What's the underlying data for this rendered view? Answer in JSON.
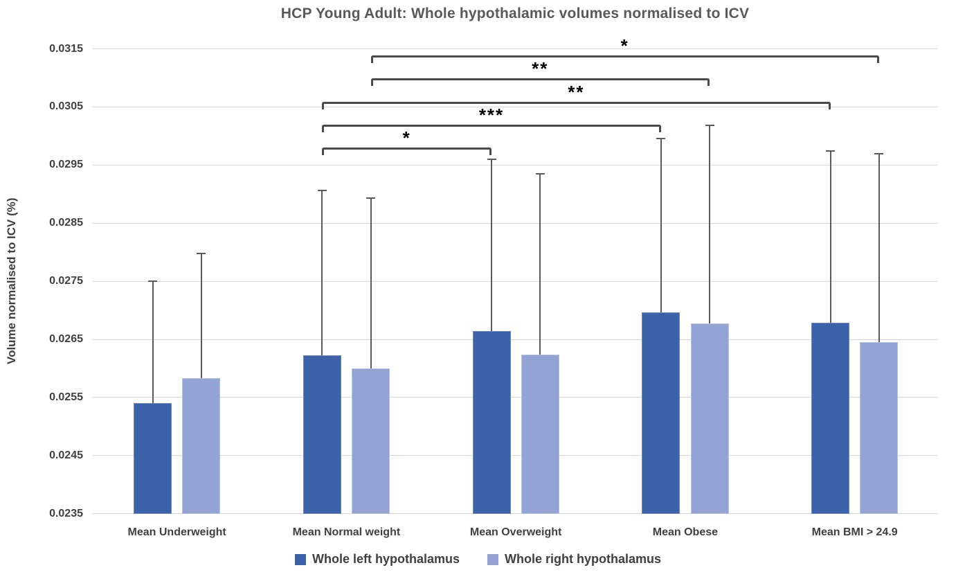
{
  "title": "HCP Young Adult: Whole hypothalamic volumes normalised to ICV",
  "chart_data": {
    "type": "bar",
    "title": "HCP Young Adult: Whole hypothalamic volumes normalised to ICV",
    "xlabel": "",
    "ylabel": "Volume normalised to ICV (%)",
    "categories": [
      "Mean Underweight",
      "Mean Normal weight",
      "Mean Overweight",
      "Mean Obese",
      "Mean BMI > 24.9"
    ],
    "series": [
      {
        "name": "Whole left hypothalamus",
        "color": "#3c63aa",
        "values": [
          0.0254,
          0.02623,
          0.02664,
          0.02697,
          0.02679
        ],
        "error_tops": [
          0.0275,
          0.02906,
          0.0296,
          0.02996,
          0.02974
        ]
      },
      {
        "name": "Whole right hypothalamus",
        "color": "#93a4d4",
        "values": [
          0.02583,
          0.026,
          0.02624,
          0.02677,
          0.02645
        ],
        "error_tops": [
          0.02798,
          0.02893,
          0.02935,
          0.03018,
          0.02969
        ]
      }
    ],
    "y_ticks": [
      0.0235,
      0.0245,
      0.0255,
      0.0265,
      0.0275,
      0.0285,
      0.0295,
      0.0305,
      0.0315
    ],
    "ylim": [
      0.0235,
      0.0315
    ],
    "grid": "horizontal",
    "legend_position": "bottom",
    "error_bars": "upper only",
    "significance_brackets": [
      {
        "series": 1,
        "from": 1,
        "to": 4,
        "label": "*"
      },
      {
        "series": 1,
        "from": 1,
        "to": 3,
        "label": "**"
      },
      {
        "series": 0,
        "from": 1,
        "to": 4,
        "label": "**"
      },
      {
        "series": 0,
        "from": 1,
        "to": 3,
        "label": "***"
      },
      {
        "series": 0,
        "from": 1,
        "to": 2,
        "label": "*"
      }
    ]
  },
  "colors": {
    "left_series": "#3c63aa",
    "right_series": "#93a4d4",
    "gridline": "#d9d9d9",
    "error_bar": "#595959",
    "bracket": "#4a4a4a",
    "text": "#404040",
    "title_text": "#595959",
    "significance_text": "#000000"
  }
}
